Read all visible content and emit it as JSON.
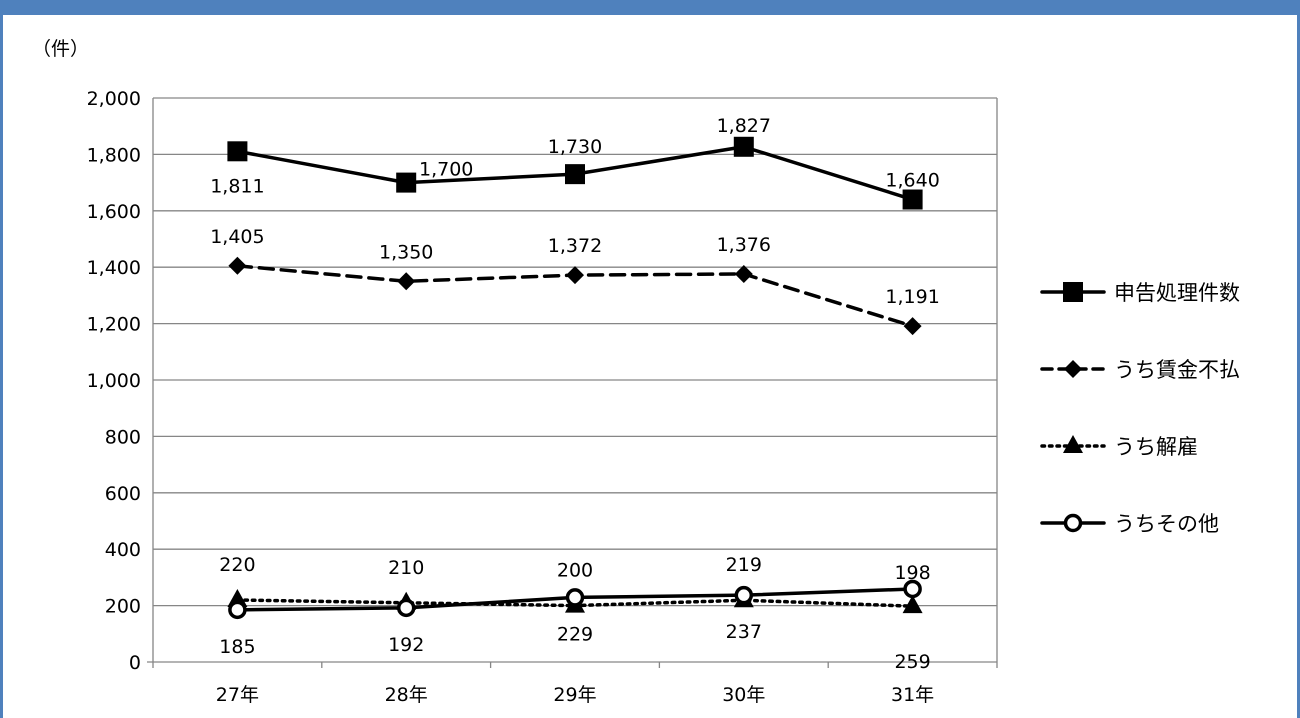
{
  "chart_data": {
    "type": "line",
    "title": "",
    "xlabel": "",
    "ylabel": "（件）",
    "categories": [
      "27年",
      "28年",
      "29年",
      "30年",
      "31年"
    ],
    "ylim": [
      0,
      2000
    ],
    "yticks": [
      "0",
      "200",
      "400",
      "600",
      "800",
      "1,000",
      "1,200",
      "1,400",
      "1,600",
      "1,800",
      "2,000"
    ],
    "grid": true,
    "legend_position": "right",
    "series": [
      {
        "name": "申告処理件数",
        "values": [
          1811,
          1700,
          1730,
          1827,
          1640
        ],
        "labels": [
          "1,811",
          "1,700",
          "1,730",
          "1,827",
          "1,640"
        ],
        "line_style": "solid",
        "marker": "square",
        "color": "#000000"
      },
      {
        "name": "うち賃金不払",
        "values": [
          1405,
          1350,
          1372,
          1376,
          1191
        ],
        "labels": [
          "1,405",
          "1,350",
          "1,372",
          "1,376",
          "1,191"
        ],
        "line_style": "dashed",
        "marker": "diamond",
        "color": "#000000"
      },
      {
        "name": "うち解雇",
        "values": [
          220,
          210,
          200,
          219,
          198
        ],
        "labels": [
          "220",
          "210",
          "200",
          "219",
          "198"
        ],
        "line_style": "dotted",
        "marker": "triangle",
        "color": "#000000"
      },
      {
        "name": "うちその他",
        "values": [
          185,
          192,
          229,
          237,
          259
        ],
        "labels": [
          "185",
          "192",
          "229",
          "237",
          "259"
        ],
        "line_style": "solid",
        "marker": "circle",
        "color": "#000000"
      }
    ]
  }
}
